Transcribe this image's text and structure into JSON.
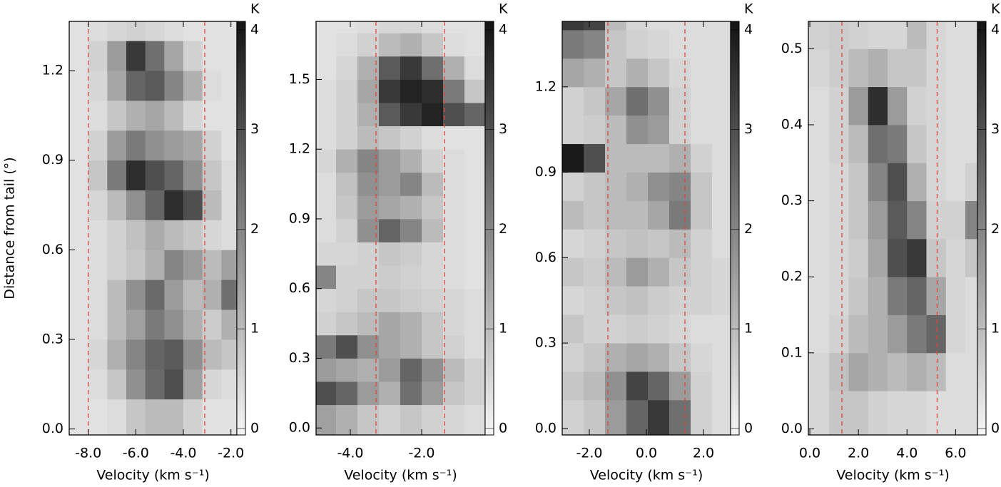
{
  "chart_data": [
    {
      "type": "heatmap",
      "y_label": "Distance from tail (°)",
      "x_label": "Velocity (km s⁻¹)",
      "colorbar_label": "K",
      "xlim": [
        -8.8,
        -1.75
      ],
      "ylim": [
        -0.02,
        1.365
      ],
      "xticks": [
        {
          "value": -8,
          "label": "-8.0"
        },
        {
          "value": -6,
          "label": "-6.0"
        },
        {
          "value": -4,
          "label": "-4.0"
        },
        {
          "value": -2,
          "label": "-2.0"
        }
      ],
      "yticks": [
        {
          "value": 0,
          "label": "0.0"
        },
        0.3,
        0.6,
        0.9,
        1.2
      ],
      "clim": [
        -0.065,
        4.085
      ],
      "cticks": [
        0,
        1,
        2,
        3,
        4
      ],
      "vlines": [
        -8,
        -3.1
      ],
      "vline_color": "#e0443c",
      "xbins": [
        -8.8,
        -8,
        -7.2,
        -6.4,
        -5.6,
        -4.8,
        -4,
        -3.2,
        -2.4,
        -1.75
      ],
      "ybins": [
        -0.02,
        0.1,
        0.2,
        0.3,
        0.4,
        0.5,
        0.6,
        0.7,
        0.8,
        0.9,
        1.0,
        1.1,
        1.2,
        1.3,
        1.365
      ],
      "z": [
        [
          0.3,
          0.3,
          0.4,
          0.8,
          1.0,
          1.0,
          0.6,
          0.3,
          0.3
        ],
        [
          0.3,
          0.4,
          0.8,
          1.8,
          2.5,
          3.0,
          1.5,
          0.5,
          0.4
        ],
        [
          0.3,
          0.5,
          1.2,
          2.0,
          2.6,
          2.8,
          1.8,
          1.0,
          0.8
        ],
        [
          0.3,
          0.4,
          1.0,
          1.5,
          2.2,
          1.8,
          1.2,
          0.7,
          1.2
        ],
        [
          0.3,
          0.4,
          1.0,
          1.8,
          2.5,
          1.6,
          1.0,
          1.2,
          2.4
        ],
        [
          0.3,
          0.4,
          0.6,
          0.8,
          1.2,
          2.0,
          1.6,
          1.0,
          1.5
        ],
        [
          0.3,
          0.4,
          0.6,
          0.9,
          1.3,
          1.0,
          0.8,
          0.5,
          0.4
        ],
        [
          0.3,
          0.5,
          1.0,
          1.8,
          2.6,
          3.6,
          3.0,
          1.0,
          0.4
        ],
        [
          0.3,
          0.8,
          2.2,
          3.6,
          3.0,
          2.6,
          1.8,
          0.8,
          0.4
        ],
        [
          0.3,
          0.6,
          1.6,
          2.2,
          1.8,
          1.6,
          1.4,
          0.6,
          0.3
        ],
        [
          0.3,
          0.4,
          0.8,
          1.2,
          1.4,
          1.0,
          0.5,
          0.3,
          0.3
        ],
        [
          0.3,
          0.5,
          1.4,
          2.6,
          2.8,
          2.0,
          1.2,
          0.4,
          0.3
        ],
        [
          0.3,
          0.6,
          1.6,
          3.4,
          2.4,
          1.4,
          0.6,
          0.3,
          0.3
        ],
        [
          0.3,
          0.4,
          0.5,
          0.6,
          0.5,
          0.4,
          0.3,
          0.3,
          0.3
        ]
      ]
    },
    {
      "type": "heatmap",
      "x_label": "Velocity (km s⁻¹)",
      "colorbar_label": "K",
      "xlim": [
        -4.96,
        -0.22
      ],
      "ylim": [
        -0.03,
        1.75
      ],
      "xticks": [
        {
          "value": -4,
          "label": "-4.0"
        },
        {
          "value": -2,
          "label": "-2.0"
        }
      ],
      "yticks": [
        {
          "value": 0,
          "label": "0.0"
        },
        0.3,
        0.6,
        0.9,
        1.2,
        1.5
      ],
      "clim": [
        -0.065,
        4.085
      ],
      "cticks": [
        0,
        1,
        2,
        3,
        4
      ],
      "vlines": [
        -3.28,
        -1.36
      ],
      "vline_color": "#e0443c",
      "xbins": [
        -4.96,
        -4.4,
        -3.8,
        -3.2,
        -2.6,
        -2.0,
        -1.4,
        -0.8,
        -0.22
      ],
      "ybins": [
        -0.03,
        0.1,
        0.2,
        0.3,
        0.4,
        0.5,
        0.6,
        0.7,
        0.8,
        0.9,
        1.0,
        1.1,
        1.2,
        1.3,
        1.4,
        1.5,
        1.6,
        1.7,
        1.75
      ],
      "z": [
        [
          1.5,
          1.2,
          0.8,
          0.6,
          0.8,
          0.6,
          0.5,
          0.4
        ],
        [
          3.0,
          2.6,
          1.6,
          1.2,
          2.4,
          1.6,
          0.8,
          0.6
        ],
        [
          1.6,
          1.4,
          1.2,
          1.6,
          2.6,
          1.8,
          1.0,
          0.6
        ],
        [
          2.2,
          3.0,
          1.8,
          1.4,
          1.2,
          0.8,
          0.6,
          0.4
        ],
        [
          0.6,
          0.8,
          1.0,
          1.4,
          1.2,
          0.8,
          0.5,
          0.4
        ],
        [
          0.5,
          0.6,
          0.8,
          0.8,
          0.7,
          0.6,
          0.5,
          0.4
        ],
        [
          2.0,
          0.6,
          0.6,
          0.7,
          0.6,
          0.5,
          0.4,
          0.3
        ],
        [
          0.5,
          0.5,
          0.6,
          0.8,
          0.7,
          0.5,
          0.4,
          0.3
        ],
        [
          0.4,
          0.6,
          1.8,
          2.6,
          2.0,
          1.0,
          0.4,
          0.3
        ],
        [
          0.4,
          0.8,
          1.6,
          1.4,
          1.2,
          0.8,
          0.4,
          0.3
        ],
        [
          0.4,
          0.9,
          1.8,
          1.6,
          2.0,
          1.0,
          0.4,
          0.3
        ],
        [
          0.5,
          1.2,
          2.0,
          1.6,
          1.2,
          0.6,
          0.4,
          0.3
        ],
        [
          0.4,
          0.6,
          1.0,
          0.8,
          0.6,
          0.4,
          0.3,
          0.3
        ],
        [
          0.4,
          0.6,
          1.2,
          2.8,
          3.4,
          3.8,
          3.0,
          2.6
        ],
        [
          0.4,
          0.6,
          1.4,
          3.4,
          3.8,
          3.6,
          2.2,
          0.8
        ],
        [
          0.3,
          0.5,
          1.2,
          2.8,
          3.4,
          2.4,
          1.2,
          0.4
        ],
        [
          0.3,
          0.4,
          0.6,
          1.0,
          1.2,
          0.8,
          0.4,
          0.3
        ],
        [
          0.3,
          0.3,
          0.4,
          0.5,
          0.5,
          0.4,
          0.3,
          0.3
        ]
      ]
    },
    {
      "type": "heatmap",
      "x_label": "Velocity (km s⁻¹)",
      "colorbar_label": "K",
      "xlim": [
        -2.95,
        2.95
      ],
      "ylim": [
        -0.023,
        1.43
      ],
      "xticks": [
        {
          "value": -2,
          "label": "-2.0"
        },
        {
          "value": 0,
          "label": "0.0"
        },
        {
          "value": 2,
          "label": "2.0"
        }
      ],
      "yticks": [
        {
          "value": 0,
          "label": "0.0"
        },
        0.3,
        0.6,
        0.9,
        1.2
      ],
      "clim": [
        -0.065,
        4.085
      ],
      "cticks": [
        0,
        1,
        2,
        3,
        4
      ],
      "vlines": [
        -1.35,
        1.35
      ],
      "vline_color": "#e0443c",
      "xbins": [
        -2.95,
        -2.2,
        -1.45,
        -0.7,
        0.05,
        0.8,
        1.55,
        2.3,
        2.95
      ],
      "ybins": [
        -0.023,
        0.1,
        0.2,
        0.3,
        0.4,
        0.5,
        0.6,
        0.7,
        0.8,
        0.9,
        1.0,
        1.1,
        1.2,
        1.3,
        1.4,
        1.43
      ],
      "z": [
        [
          0.6,
          0.8,
          1.6,
          2.6,
          3.4,
          2.4,
          0.6,
          0.4
        ],
        [
          0.8,
          1.0,
          1.8,
          3.2,
          2.6,
          1.6,
          0.6,
          0.4
        ],
        [
          0.6,
          0.8,
          1.2,
          1.4,
          1.2,
          0.8,
          0.5,
          0.4
        ],
        [
          0.8,
          0.6,
          0.6,
          0.7,
          0.6,
          0.5,
          0.4,
          0.4
        ],
        [
          0.5,
          0.6,
          0.8,
          0.9,
          0.7,
          0.6,
          0.6,
          0.5
        ],
        [
          0.8,
          0.7,
          1.0,
          1.6,
          1.2,
          0.8,
          0.6,
          0.5
        ],
        [
          0.5,
          0.6,
          0.8,
          0.9,
          0.8,
          1.0,
          0.6,
          0.4
        ],
        [
          1.0,
          0.8,
          1.0,
          1.0,
          1.4,
          2.2,
          0.8,
          0.4
        ],
        [
          0.6,
          0.8,
          1.0,
          1.2,
          1.8,
          2.0,
          0.8,
          0.4
        ],
        [
          4.0,
          3.0,
          1.0,
          1.0,
          1.0,
          1.2,
          0.6,
          0.4
        ],
        [
          0.6,
          0.7,
          1.0,
          1.8,
          1.6,
          0.6,
          0.4,
          0.4
        ],
        [
          0.6,
          0.8,
          1.4,
          2.4,
          1.8,
          0.6,
          0.4,
          0.4
        ],
        [
          1.4,
          1.2,
          0.8,
          1.2,
          0.8,
          0.5,
          0.4,
          0.4
        ],
        [
          2.2,
          2.0,
          0.8,
          0.6,
          0.5,
          0.4,
          0.4,
          0.4
        ],
        [
          3.4,
          3.2,
          1.0,
          0.5,
          0.4,
          0.4,
          0.4,
          0.4
        ]
      ]
    },
    {
      "type": "heatmap",
      "x_label": "Velocity (km s⁻¹)",
      "colorbar_label": "K",
      "xlim": [
        -0.06,
        6.9
      ],
      "ylim": [
        -0.008,
        0.536
      ],
      "xticks": [
        {
          "value": 0,
          "label": "0.0"
        },
        {
          "value": 2,
          "label": "2.0"
        },
        {
          "value": 4,
          "label": "4.0"
        },
        {
          "value": 6,
          "label": "6.0"
        }
      ],
      "yticks": [
        {
          "value": 0,
          "label": "0.0"
        },
        0.1,
        0.2,
        0.3,
        0.4,
        0.5
      ],
      "clim": [
        -0.065,
        4.085
      ],
      "cticks": [
        0,
        1,
        2,
        3,
        4
      ],
      "vlines": [
        1.32,
        5.24
      ],
      "vline_color": "#e0443c",
      "xbins": [
        -0.06,
        0.8,
        1.6,
        2.4,
        3.2,
        4.0,
        4.8,
        5.6,
        6.4,
        6.9
      ],
      "ybins": [
        -0.008,
        0.05,
        0.1,
        0.15,
        0.2,
        0.25,
        0.3,
        0.35,
        0.4,
        0.45,
        0.5,
        0.536
      ],
      "z": [
        [
          0.5,
          0.8,
          0.8,
          0.6,
          0.5,
          0.5,
          0.4,
          0.4,
          0.4
        ],
        [
          0.5,
          0.9,
          1.4,
          1.2,
          1.0,
          1.2,
          1.0,
          0.4,
          0.4
        ],
        [
          0.4,
          0.6,
          1.0,
          1.2,
          1.6,
          2.2,
          2.6,
          0.5,
          0.4
        ],
        [
          0.4,
          0.5,
          0.8,
          1.2,
          2.2,
          2.6,
          1.4,
          0.5,
          0.4
        ],
        [
          0.4,
          0.5,
          0.7,
          1.4,
          3.0,
          3.4,
          0.8,
          0.5,
          0.8
        ],
        [
          0.4,
          0.5,
          0.8,
          1.6,
          2.8,
          2.0,
          0.6,
          0.6,
          2.0
        ],
        [
          0.4,
          0.5,
          0.8,
          2.0,
          3.0,
          1.2,
          0.5,
          0.4,
          0.6
        ],
        [
          0.4,
          0.6,
          1.0,
          2.4,
          2.2,
          0.8,
          0.5,
          0.4,
          0.4
        ],
        [
          0.4,
          0.6,
          1.6,
          3.6,
          1.6,
          0.6,
          0.5,
          0.4,
          0.4
        ],
        [
          0.5,
          0.7,
          1.0,
          1.2,
          0.8,
          0.8,
          0.5,
          0.4,
          0.4
        ],
        [
          0.6,
          0.7,
          0.6,
          0.5,
          0.5,
          1.0,
          0.5,
          0.4,
          0.4
        ]
      ]
    }
  ]
}
